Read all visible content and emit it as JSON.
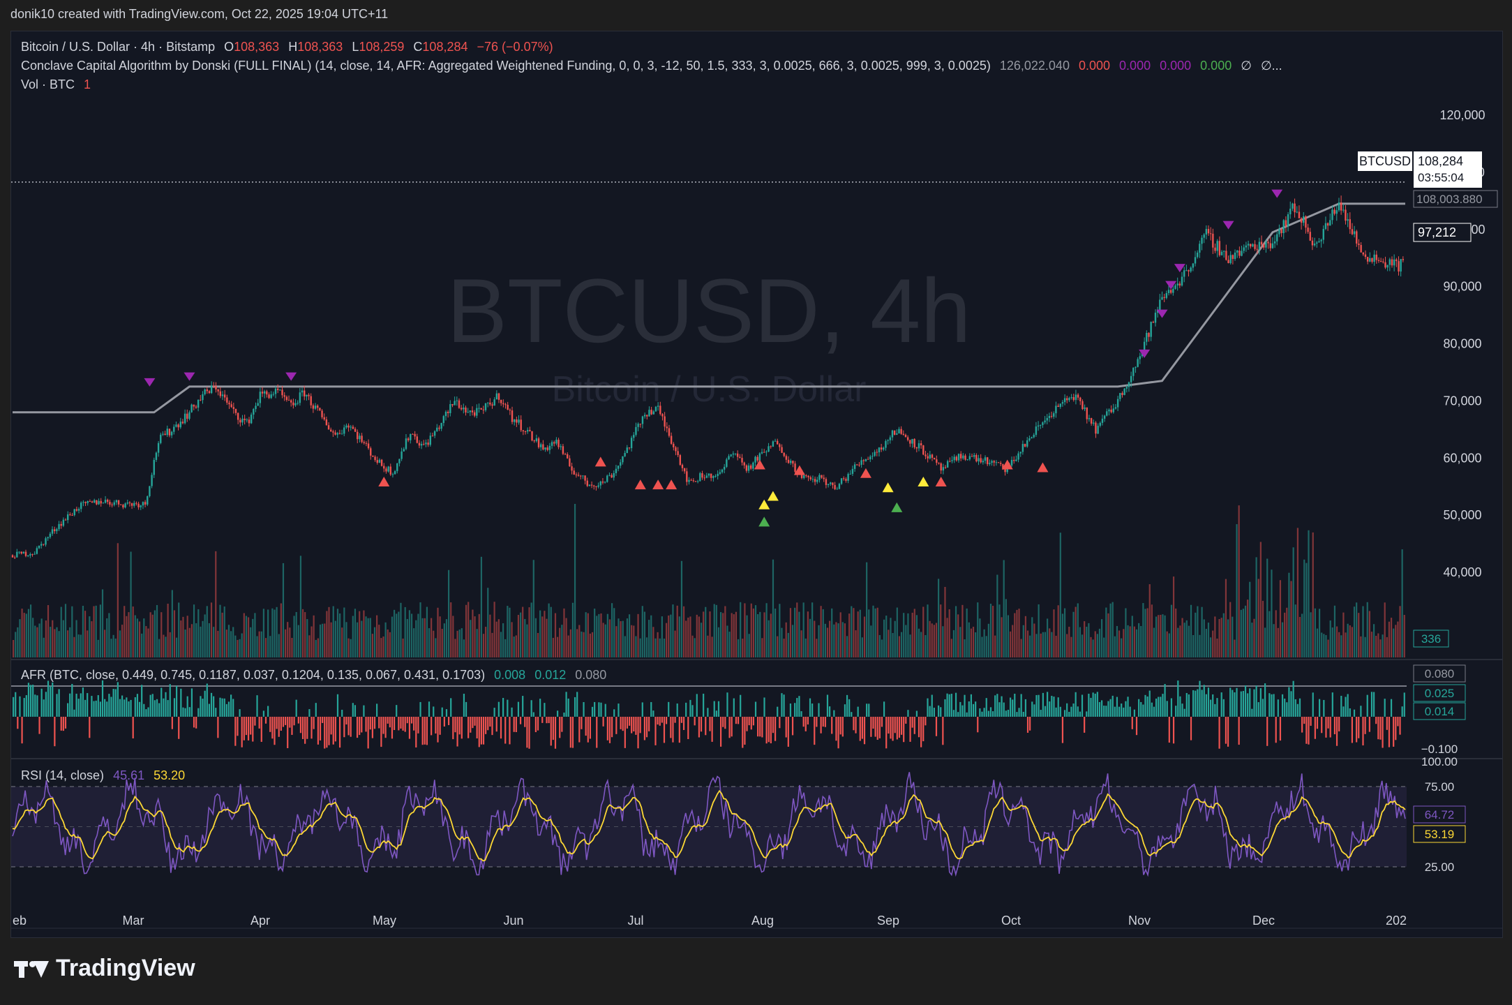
{
  "meta": {
    "created_by": "donik10 created with TradingView.com, Oct 22, 2025 19:04 UTC+11"
  },
  "brand": {
    "name": "TradingView"
  },
  "header": {
    "symbol_line": "Bitcoin / U.S. Dollar · 4h · Bitstamp",
    "o_label": "O",
    "o": "108,363",
    "h_label": "H",
    "h": "108,363",
    "l_label": "L",
    "l": "108,259",
    "c_label": "C",
    "c": "108,284",
    "change": "−76 (−0.07%)",
    "indicator": "Conclave Capital Algorithm by Donski (FULL FINAL) (14, close, 14, AFR: Aggregated Weightened Funding, 0, 0, 3, -12, 50, 1.5, 333, 3, 0.0025, 666, 3, 0.0025, 999, 3, 0.0025)",
    "ind_v1": "126,022.040",
    "ind_v2": "0.000",
    "ind_v3": "0.000",
    "ind_v4": "0.000",
    "ind_v5": "0.000",
    "ind_v6": "∅",
    "ind_v7": "∅...",
    "vol_label": "Vol · BTC",
    "vol_value": "1"
  },
  "watermark": {
    "symbol": "BTCUSD, 4h",
    "name": "Bitcoin / U.S. Dollar"
  },
  "afr_header": {
    "label": "AFR (BTC, close, 0.449, 0.745, 0.1187, 0.037, 0.1204, 0.135, 0.067, 0.431, 0.1703)",
    "v1": "0.008",
    "v2": "0.012",
    "v3": "0.080"
  },
  "rsi_header": {
    "label": "RSI (14, close)",
    "v1": "45.61",
    "v2": "53.20"
  },
  "labels": {
    "btcusd_tag": "BTCUSD",
    "last_price": "108,284",
    "countdown": "03:55:04",
    "ind_price": "108,003.880",
    "ind_price2": "97,212",
    "volume": "336",
    "afr_max": "0.080",
    "afr_v1": "0.025",
    "afr_v2": "0.014",
    "afr_min": "−0.100",
    "rsi_max": "100.00",
    "rsi_v1": "64.72",
    "rsi_v2": "53.19"
  },
  "colors": {
    "bg": "#131722",
    "up": "#26a69a",
    "down": "#ef5350",
    "purple": "#9c27b0",
    "yellow": "#ffeb3b",
    "green": "#4caf50",
    "rsi_line": "#7e57c2",
    "rsi_ma": "#fdd835",
    "band_line": "#9598a1",
    "text": "#d1d4dc",
    "muted": "#787b86"
  },
  "chart_data": [
    {
      "type": "line",
      "title": "Bitcoin / U.S. Dollar · 4h · Bitstamp",
      "y_ticks": [
        120000,
        110000,
        100000,
        90000,
        80000,
        70000,
        60000,
        50000,
        40000
      ],
      "y_tick_labels": [
        "120,000",
        "110,000",
        "100,000",
        "90,000",
        "80,000",
        "70,000",
        "60,000",
        "50,000",
        "40,000"
      ],
      "x_ticks": [
        "eb",
        "Mar",
        "Apr",
        "May",
        "Jun",
        "Jul",
        "Aug",
        "Sep",
        "Oct",
        "Nov",
        "Dec",
        "202"
      ],
      "series": [
        {
          "name": "BTCUSD",
          "x": [
            0,
            5,
            10,
            15,
            20,
            25,
            30,
            33,
            36,
            40,
            43,
            46,
            50,
            53,
            56,
            60,
            63,
            66,
            70,
            73,
            76,
            80,
            83,
            86,
            90,
            93,
            96,
            100,
            103,
            106,
            110,
            113,
            116,
            120,
            123,
            126,
            130,
            133,
            136,
            140,
            143,
            146,
            150,
            153,
            156,
            160,
            163,
            166,
            170,
            173,
            176,
            180,
            183,
            186,
            190,
            193,
            196,
            200,
            205,
            210,
            215,
            220,
            225,
            230,
            235,
            240,
            245,
            250,
            255,
            260,
            265,
            270,
            275,
            280,
            285,
            290,
            295,
            300,
            305,
            310,
            315
          ],
          "y": [
            43000,
            43500,
            48000,
            51500,
            52500,
            52000,
            52000,
            63000,
            65000,
            68000,
            71000,
            72500,
            68000,
            66000,
            71000,
            71500,
            69000,
            71500,
            67000,
            64000,
            66000,
            62000,
            59000,
            57500,
            64500,
            62000,
            65000,
            70000,
            68000,
            68000,
            71000,
            67000,
            65000,
            61500,
            63000,
            58500,
            55500,
            55500,
            57500,
            63000,
            68000,
            68500,
            61500,
            55500,
            57000,
            57000,
            61500,
            58000,
            61000,
            63000,
            59000,
            56000,
            56500,
            54500,
            58000,
            60000,
            61500,
            65000,
            62000,
            58000,
            60500,
            59500,
            58000,
            63500,
            68000,
            71000,
            65000,
            70000,
            78000,
            88000,
            92000,
            99000,
            95000,
            97000,
            98000,
            104000,
            97000,
            105000,
            96000,
            94500,
            93500
          ]
        },
        {
          "name": "Band",
          "x": [
            0,
            32,
            40,
            250,
            260,
            285,
            300,
            315
          ],
          "y": [
            68000,
            68000,
            72500,
            72500,
            73500,
            99500,
            104500,
            104500
          ]
        }
      ],
      "markers": [
        {
          "kind": "down-purple",
          "x": 31,
          "y": 73000
        },
        {
          "kind": "down-purple",
          "x": 40,
          "y": 74000
        },
        {
          "kind": "down-purple",
          "x": 63,
          "y": 74000
        },
        {
          "kind": "up-red",
          "x": 84,
          "y": 56000
        },
        {
          "kind": "up-red",
          "x": 133,
          "y": 59500
        },
        {
          "kind": "up-red",
          "x": 142,
          "y": 55500
        },
        {
          "kind": "up-red",
          "x": 146,
          "y": 55500
        },
        {
          "kind": "up-red",
          "x": 149,
          "y": 55500
        },
        {
          "kind": "up-red",
          "x": 169,
          "y": 59000
        },
        {
          "kind": "up-yellow",
          "x": 170,
          "y": 52000
        },
        {
          "kind": "up-green",
          "x": 170,
          "y": 49000
        },
        {
          "kind": "up-yellow",
          "x": 172,
          "y": 53500
        },
        {
          "kind": "up-red",
          "x": 178,
          "y": 58000
        },
        {
          "kind": "up-red",
          "x": 193,
          "y": 57500
        },
        {
          "kind": "up-yellow",
          "x": 198,
          "y": 55000
        },
        {
          "kind": "up-green",
          "x": 200,
          "y": 51500
        },
        {
          "kind": "up-yellow",
          "x": 206,
          "y": 56000
        },
        {
          "kind": "up-red",
          "x": 210,
          "y": 56000
        },
        {
          "kind": "up-red",
          "x": 225,
          "y": 59000
        },
        {
          "kind": "up-red",
          "x": 233,
          "y": 58500
        },
        {
          "kind": "down-purple",
          "x": 256,
          "y": 78000
        },
        {
          "kind": "down-purple",
          "x": 260,
          "y": 85000
        },
        {
          "kind": "down-purple",
          "x": 262,
          "y": 90000
        },
        {
          "kind": "down-purple",
          "x": 264,
          "y": 93000
        },
        {
          "kind": "down-purple",
          "x": 275,
          "y": 100500
        },
        {
          "kind": "down-purple",
          "x": 286,
          "y": 106000
        }
      ]
    },
    {
      "type": "bar",
      "title": "Vol · BTC",
      "series": [
        {
          "name": "Vol · BTC",
          "values": [
            336
          ]
        }
      ]
    },
    {
      "type": "bar",
      "title": "AFR (BTC, close, 0.449, 0.745, 0.1187, 0.037, 0.1204, 0.135, 0.067, 0.431, 0.1703)",
      "ylim": [
        -0.1,
        0.08
      ],
      "y_tick_labels": [
        "0.080",
        "−0.100"
      ]
    },
    {
      "type": "line",
      "title": "RSI (14, close)",
      "ylim": [
        25,
        100
      ],
      "y_tick_labels": [
        "100.00",
        "75.00",
        "25.00"
      ],
      "series": [
        {
          "name": "RSI",
          "last": 45.61
        },
        {
          "name": "RSI MA",
          "last": 53.2
        }
      ]
    }
  ]
}
